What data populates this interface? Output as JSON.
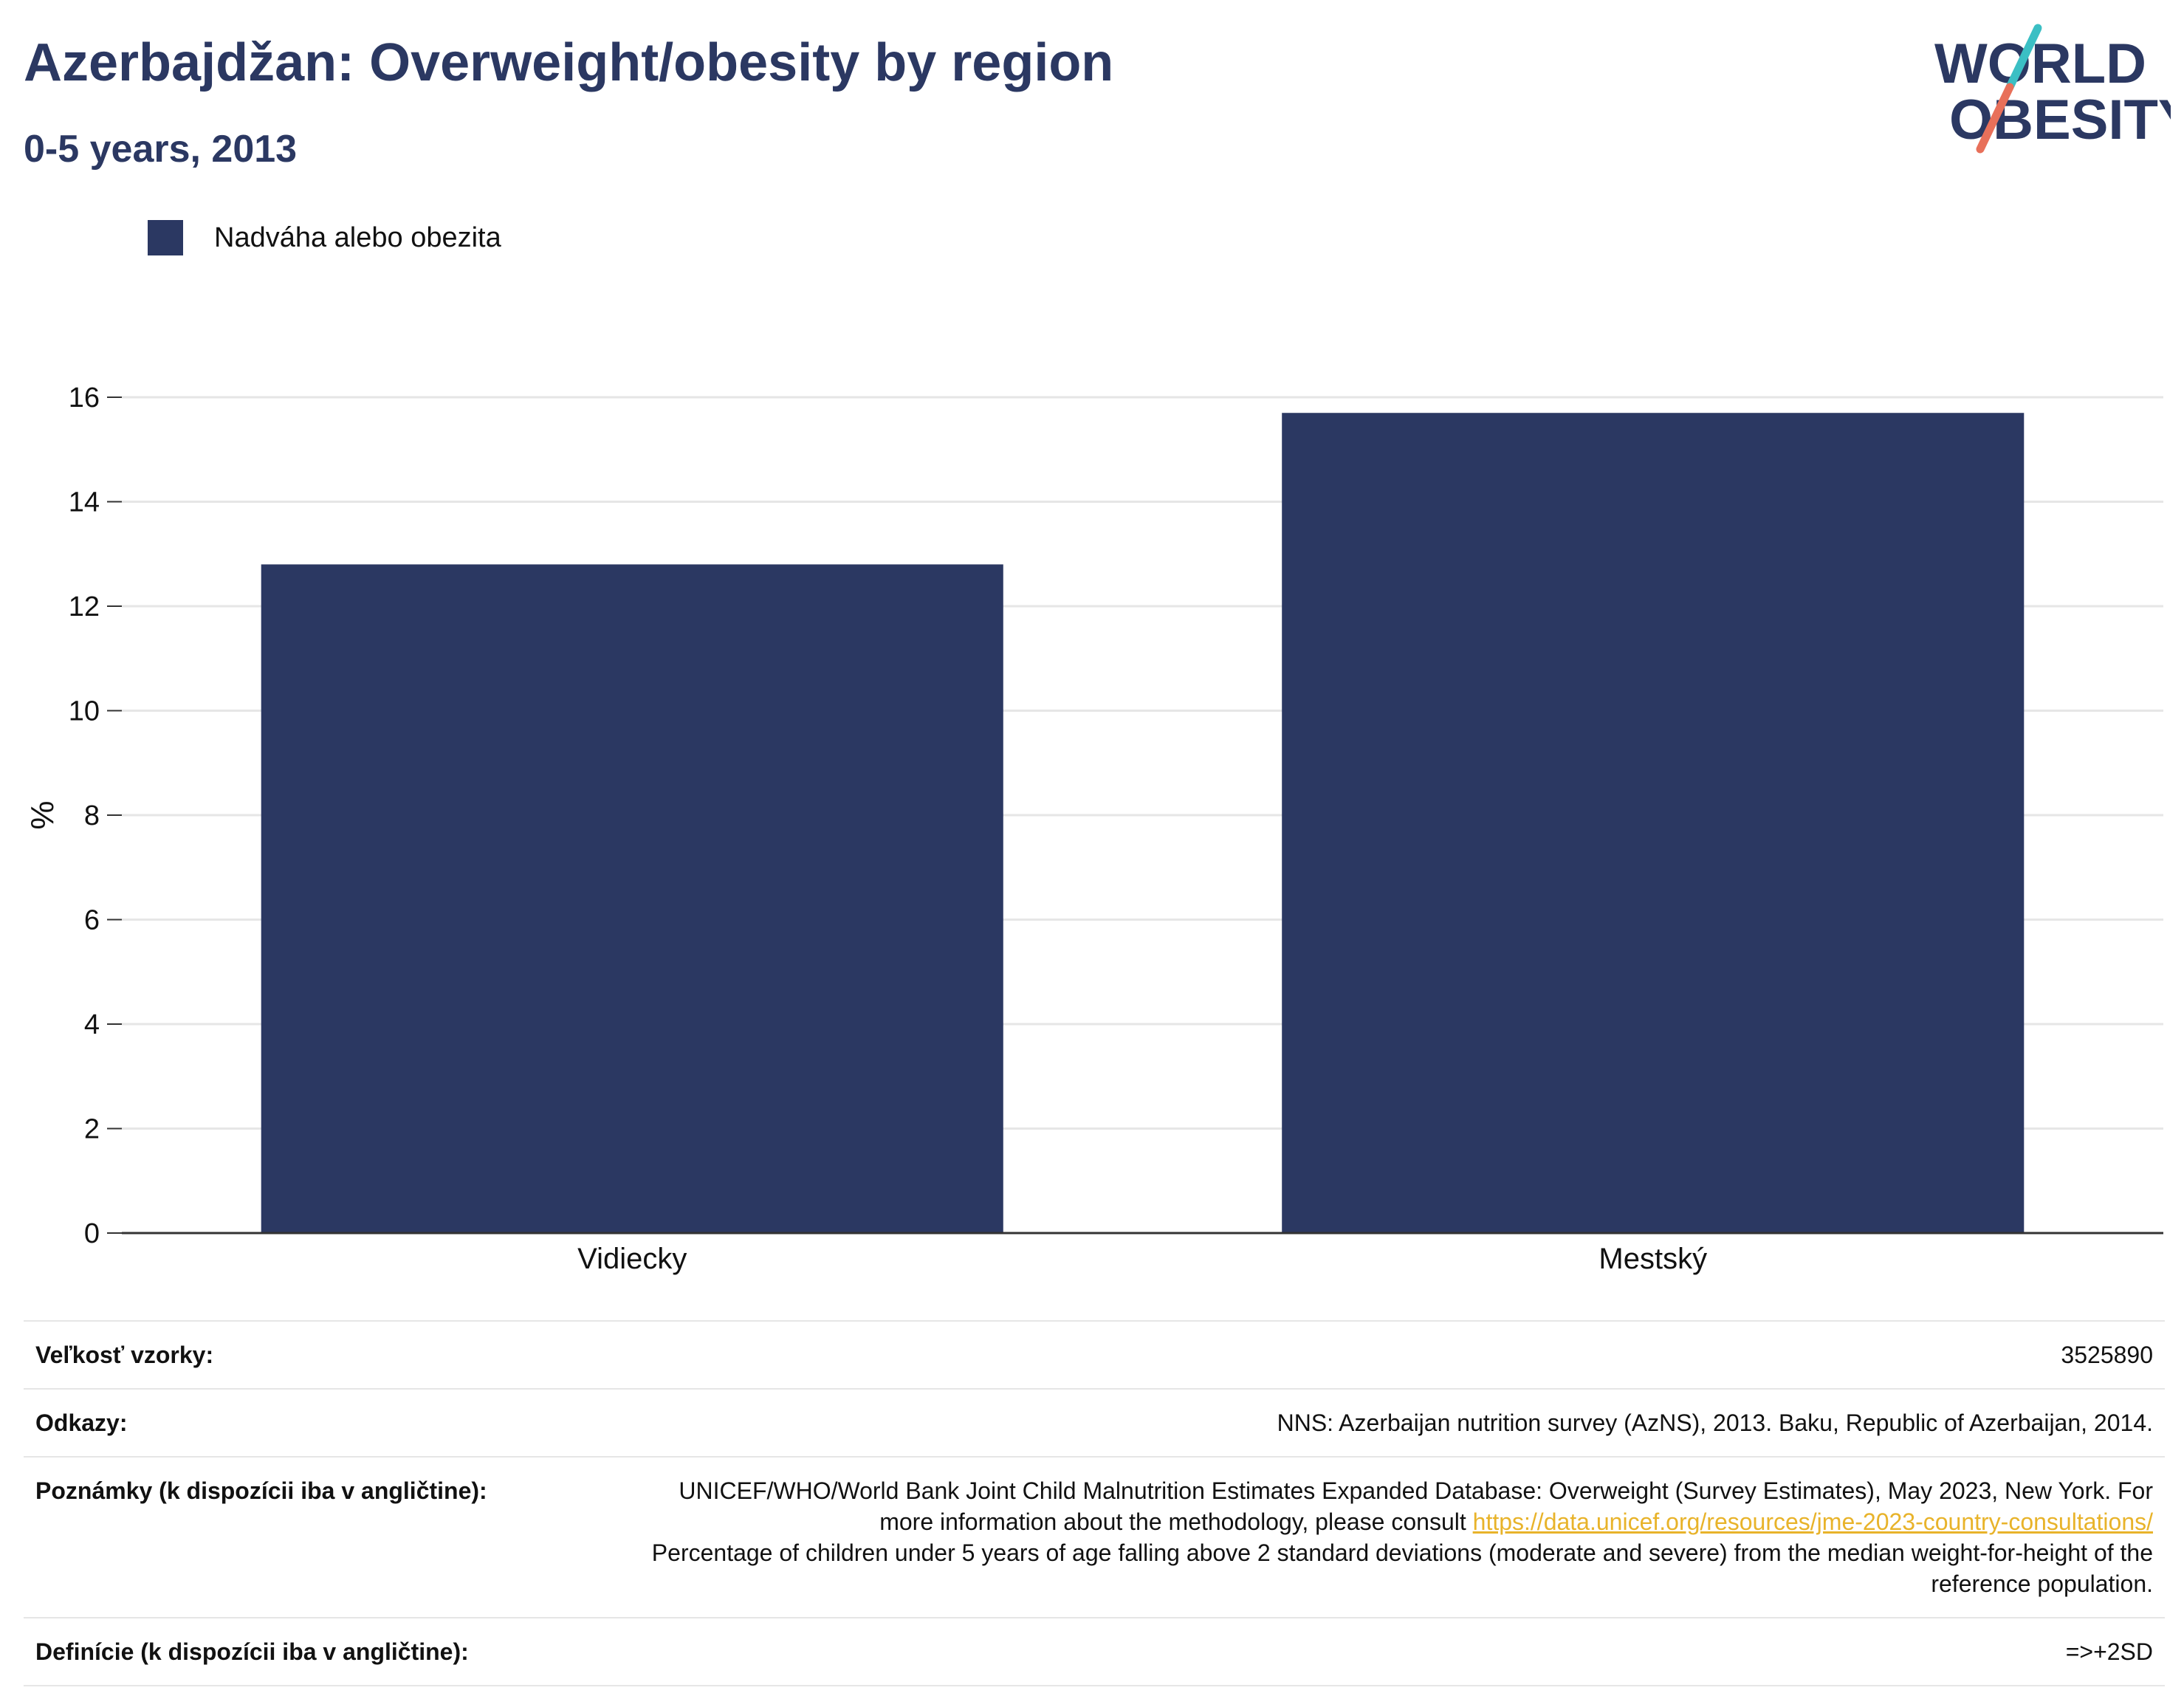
{
  "header": {
    "title": "Azerbajdžan: Overweight/obesity by region",
    "subtitle": "0-5 years, 2013"
  },
  "logo": {
    "line1": "WORLD",
    "line2": "OBESITY",
    "colors": {
      "text": "#2b3862",
      "slash_top": "#3bbfc4",
      "slash_bottom": "#e8705a"
    }
  },
  "legend": {
    "label": "Nadváha alebo obezita",
    "color": "#2b3862"
  },
  "chart_data": {
    "type": "bar",
    "categories": [
      "Vidiecky",
      "Mestský"
    ],
    "series": [
      {
        "name": "Nadváha alebo obezita",
        "values": [
          12.8,
          15.7
        ],
        "color": "#2b3862"
      }
    ],
    "ylabel": "%",
    "ylim": [
      0,
      16
    ],
    "yticks": [
      0,
      2,
      4,
      6,
      8,
      10,
      12,
      14,
      16
    ],
    "grid": true,
    "legend_position": "top-left"
  },
  "meta": {
    "sample_size_label": "Veľkosť vzorky:",
    "sample_size_value": "3525890",
    "references_label": "Odkazy:",
    "references_value": "NNS: Azerbaijan nutrition survey (AzNS), 2013. Baku, Republic of Azerbaijan, 2014.",
    "notes_label": "Poznámky (k dispozícii iba v angličtine):",
    "notes_text_1": "UNICEF/WHO/World Bank Joint Child Malnutrition Estimates Expanded Database: Overweight (Survey Estimates), May 2023, New York. For more information about the methodology, please consult",
    "notes_link": "https://data.unicef.org/resources/jme-2023-country-consultations/",
    "notes_text_2": "Percentage of children under 5 years of age falling above 2 standard deviations (moderate and severe) from the median weight-for-height of the reference population.",
    "definitions_label": "Definície (k dispozícii iba v angličtine):",
    "definitions_value": "=>+2SD"
  }
}
